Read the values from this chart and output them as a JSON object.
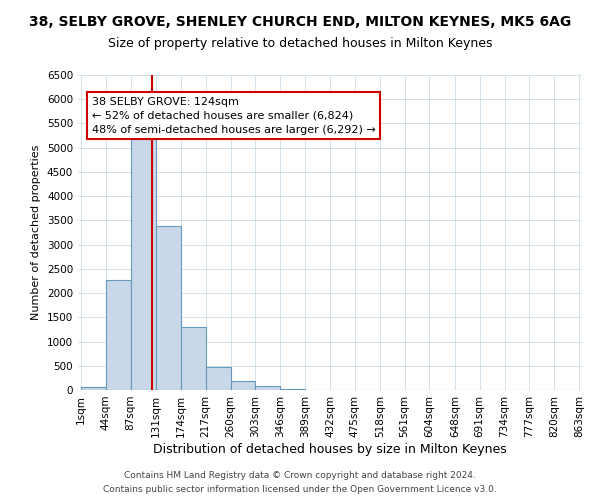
{
  "title": "38, SELBY GROVE, SHENLEY CHURCH END, MILTON KEYNES, MK5 6AG",
  "subtitle": "Size of property relative to detached houses in Milton Keynes",
  "xlabel": "Distribution of detached houses by size in Milton Keynes",
  "ylabel": "Number of detached properties",
  "bin_edges": [
    1,
    44,
    87,
    131,
    174,
    217,
    260,
    303,
    346,
    389,
    432,
    475,
    518,
    561,
    604,
    648,
    691,
    734,
    777,
    820,
    863
  ],
  "bar_heights": [
    60,
    2280,
    5430,
    3390,
    1310,
    480,
    185,
    80,
    30,
    5,
    3,
    2,
    0,
    0,
    0,
    0,
    0,
    0,
    0,
    0
  ],
  "bar_color": "#c8d8e8",
  "bar_edge_color": "#6699bb",
  "property_size": 124,
  "vline_color": "#cc0000",
  "annotation_text": "38 SELBY GROVE: 124sqm\n← 52% of detached houses are smaller (6,824)\n48% of semi-detached houses are larger (6,292) →",
  "annotation_box_color": "#ffffff",
  "annotation_box_edge": "#cc0000",
  "ylim": [
    0,
    6500
  ],
  "yticks": [
    0,
    500,
    1000,
    1500,
    2000,
    2500,
    3000,
    3500,
    4000,
    4500,
    5000,
    5500,
    6000,
    6500
  ],
  "footer1": "Contains HM Land Registry data © Crown copyright and database right 2024.",
  "footer2": "Contains public sector information licensed under the Open Government Licence v3.0.",
  "title_fontsize": 10,
  "subtitle_fontsize": 9,
  "xlabel_fontsize": 9,
  "ylabel_fontsize": 8,
  "tick_fontsize": 7.5,
  "annotation_fontsize": 8,
  "footer_fontsize": 6.5
}
